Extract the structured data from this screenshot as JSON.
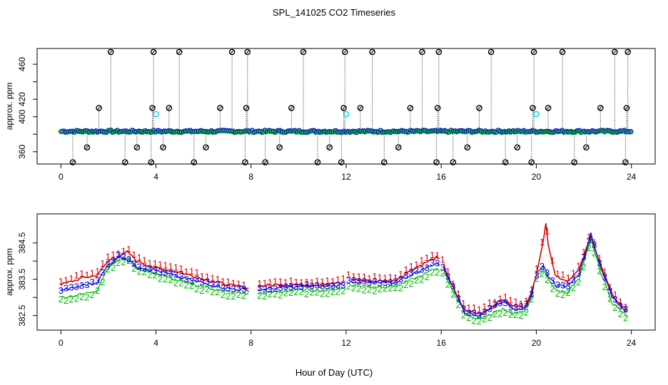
{
  "figure": {
    "title": "SPL_141025  CO2 Timeseries",
    "xlabel": "Hour of Day (UTC)"
  },
  "colors": {
    "series1": "#e00000",
    "series2": "#00bb00",
    "series3": "#0000dd",
    "black_points": "#000000",
    "cyan_points": "#00cccc"
  },
  "chart_data": [
    {
      "type": "scatter",
      "name": "top-panel",
      "ylabel": "approx. ppm",
      "xlim": [
        -1,
        25
      ],
      "ylim": [
        346,
        478
      ],
      "xticks": [
        0,
        4,
        8,
        12,
        16,
        20,
        24
      ],
      "yticks": [
        360,
        380,
        400,
        420,
        440,
        460
      ],
      "ytick_labels": [
        "360",
        "",
        "400",
        "420",
        "",
        "460"
      ],
      "baseline_ppm": 383,
      "calibration_spikes": {
        "x": [
          0.5,
          1.1,
          1.6,
          2.1,
          2.7,
          3.2,
          3.8,
          3.85,
          3.9,
          4.3,
          4.55,
          4.98,
          5.6,
          6.1,
          6.7,
          7.2,
          7.75,
          7.8,
          7.85,
          8.6,
          9.2,
          9.7,
          10.2,
          10.8,
          11.3,
          11.8,
          11.9,
          11.95,
          12.6,
          13.1,
          13.6,
          14.2,
          14.7,
          15.2,
          15.8,
          15.85,
          15.9,
          16.5,
          17.1,
          17.6,
          18.1,
          18.7,
          19.2,
          19.8,
          19.85,
          19.9,
          20.5,
          21.1,
          21.6,
          22.1,
          22.7,
          23.3,
          23.75,
          23.8,
          23.85
        ],
        "y": [
          348,
          365,
          410,
          474,
          348,
          365,
          348,
          410,
          474,
          365,
          410,
          474,
          348,
          365,
          410,
          474,
          348,
          410,
          474,
          348,
          365,
          410,
          474,
          348,
          365,
          348,
          410,
          474,
          410,
          474,
          348,
          365,
          410,
          474,
          348,
          410,
          474,
          348,
          365,
          410,
          474,
          348,
          365,
          348,
          410,
          474,
          410,
          474,
          348,
          365,
          410,
          474,
          348,
          410,
          474
        ]
      },
      "cyan_markers": {
        "x": [
          4.0,
          12.0,
          20.0
        ],
        "y": [
          403,
          403,
          403
        ]
      }
    },
    {
      "type": "line",
      "name": "bottom-panel",
      "ylabel": "approx. ppm",
      "xlim": [
        -1,
        25
      ],
      "ylim": [
        382.1,
        385.3
      ],
      "xticks": [
        0,
        4,
        8,
        12,
        16,
        20,
        24
      ],
      "yticks": [
        382.5,
        383.0,
        383.5,
        384.0,
        384.5
      ],
      "ytick_labels": [
        "382.5",
        "",
        "383.5",
        "",
        "384.5"
      ],
      "series": [
        {
          "name": "1",
          "key": [
            [
              0,
              383.35
            ],
            [
              0.5,
              383.45
            ],
            [
              1.0,
              383.55
            ],
            [
              1.5,
              383.6
            ],
            [
              2.0,
              384.0
            ],
            [
              2.5,
              384.15
            ],
            [
              2.8,
              384.25
            ],
            [
              3.2,
              384.0
            ],
            [
              4.0,
              383.8
            ],
            [
              5.0,
              383.7
            ],
            [
              6.0,
              383.5
            ],
            [
              7.0,
              383.35
            ],
            [
              7.9,
              383.25
            ],
            [
              8.2,
              383.3
            ],
            [
              9.0,
              383.35
            ],
            [
              10.0,
              383.35
            ],
            [
              11.0,
              383.35
            ],
            [
              11.9,
              383.4
            ],
            [
              12.1,
              383.5
            ],
            [
              13.0,
              383.45
            ],
            [
              14.0,
              383.45
            ],
            [
              15.0,
              383.85
            ],
            [
              15.8,
              384.1
            ],
            [
              16.1,
              383.9
            ],
            [
              16.6,
              383.1
            ],
            [
              17.0,
              382.65
            ],
            [
              17.6,
              382.55
            ],
            [
              18.0,
              382.7
            ],
            [
              18.6,
              382.95
            ],
            [
              19.0,
              382.75
            ],
            [
              19.5,
              382.75
            ],
            [
              19.8,
              383.1
            ],
            [
              20.0,
              383.65
            ],
            [
              20.3,
              384.6
            ],
            [
              20.4,
              385.0
            ],
            [
              20.5,
              384.5
            ],
            [
              20.8,
              383.6
            ],
            [
              21.3,
              383.45
            ],
            [
              21.8,
              383.75
            ],
            [
              22.3,
              384.7
            ],
            [
              22.7,
              383.9
            ],
            [
              23.2,
              383.05
            ],
            [
              23.7,
              382.7
            ],
            [
              23.9,
              382.6
            ]
          ]
        },
        {
          "name": "2",
          "key": [
            [
              0,
              383.0
            ],
            [
              0.5,
              383.05
            ],
            [
              1.0,
              383.1
            ],
            [
              1.5,
              383.2
            ],
            [
              2.0,
              383.85
            ],
            [
              2.5,
              384.05
            ],
            [
              2.8,
              384.1
            ],
            [
              3.2,
              383.8
            ],
            [
              4.0,
              383.65
            ],
            [
              5.0,
              383.45
            ],
            [
              6.0,
              383.3
            ],
            [
              7.0,
              383.15
            ],
            [
              7.9,
              383.1
            ],
            [
              8.2,
              383.1
            ],
            [
              9.0,
              383.15
            ],
            [
              10.0,
              383.2
            ],
            [
              11.0,
              383.2
            ],
            [
              11.9,
              383.25
            ],
            [
              12.1,
              383.35
            ],
            [
              13.0,
              383.3
            ],
            [
              14.0,
              383.3
            ],
            [
              15.0,
              383.55
            ],
            [
              15.8,
              383.8
            ],
            [
              16.1,
              383.7
            ],
            [
              16.6,
              383.05
            ],
            [
              17.0,
              382.55
            ],
            [
              17.6,
              382.4
            ],
            [
              18.0,
              382.5
            ],
            [
              18.6,
              382.7
            ],
            [
              19.0,
              382.55
            ],
            [
              19.5,
              382.6
            ],
            [
              19.8,
              383.0
            ],
            [
              20.0,
              383.55
            ],
            [
              20.3,
              383.75
            ],
            [
              20.5,
              383.55
            ],
            [
              20.8,
              383.2
            ],
            [
              21.3,
              383.15
            ],
            [
              21.8,
              383.5
            ],
            [
              22.3,
              384.6
            ],
            [
              22.7,
              383.7
            ],
            [
              23.2,
              382.85
            ],
            [
              23.7,
              382.55
            ],
            [
              23.9,
              382.45
            ]
          ]
        },
        {
          "name": "3",
          "key": [
            [
              0,
              383.2
            ],
            [
              0.5,
              383.25
            ],
            [
              1.0,
              383.35
            ],
            [
              1.5,
              383.4
            ],
            [
              2.0,
              383.9
            ],
            [
              2.5,
              384.15
            ],
            [
              2.8,
              384.05
            ],
            [
              3.2,
              383.85
            ],
            [
              4.0,
              383.75
            ],
            [
              5.0,
              383.55
            ],
            [
              6.0,
              383.4
            ],
            [
              7.0,
              383.25
            ],
            [
              7.9,
              383.2
            ],
            [
              8.2,
              383.2
            ],
            [
              9.0,
              383.25
            ],
            [
              10.0,
              383.3
            ],
            [
              11.0,
              383.3
            ],
            [
              11.9,
              383.35
            ],
            [
              12.1,
              383.45
            ],
            [
              13.0,
              383.4
            ],
            [
              14.0,
              383.4
            ],
            [
              15.0,
              383.7
            ],
            [
              15.8,
              383.95
            ],
            [
              16.1,
              383.8
            ],
            [
              16.6,
              383.15
            ],
            [
              17.0,
              382.6
            ],
            [
              17.6,
              382.5
            ],
            [
              18.0,
              382.65
            ],
            [
              18.6,
              382.9
            ],
            [
              19.0,
              382.7
            ],
            [
              19.5,
              382.7
            ],
            [
              19.8,
              383.05
            ],
            [
              20.0,
              383.6
            ],
            [
              20.3,
              383.85
            ],
            [
              20.5,
              383.6
            ],
            [
              20.8,
              383.35
            ],
            [
              21.3,
              383.3
            ],
            [
              21.8,
              383.65
            ],
            [
              22.3,
              384.75
            ],
            [
              22.7,
              383.85
            ],
            [
              23.2,
              383.0
            ],
            [
              23.7,
              382.65
            ],
            [
              23.9,
              382.55
            ]
          ]
        }
      ]
    }
  ]
}
